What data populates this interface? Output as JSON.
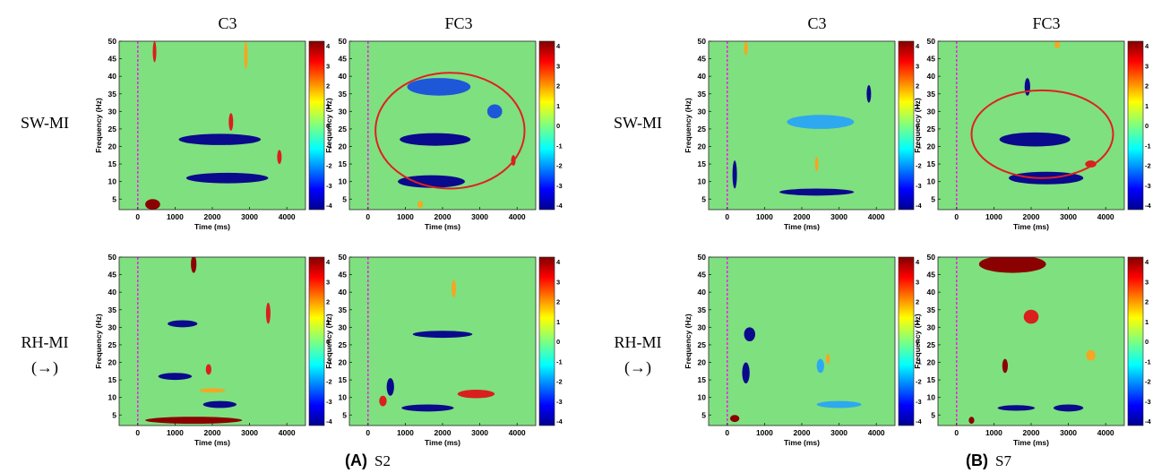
{
  "figure": {
    "panels": [
      {
        "letter": "(A)",
        "subject": "S2"
      },
      {
        "letter": "(B)",
        "subject": "S7"
      }
    ],
    "channels": [
      "C3",
      "FC3"
    ],
    "conditions": [
      {
        "line1": "SW-MI",
        "line2": ""
      },
      {
        "line1": "RH-MI",
        "line2": "(→)"
      }
    ]
  },
  "colors": {
    "background_green": "#7fe07f",
    "strong_blue": "#0a0a8c",
    "mid_blue": "#1f57d9",
    "light_blue": "#2ea8ef",
    "orange": "#f5a623",
    "red": "#d9201c",
    "dark_red": "#8b0000",
    "onset_line": "#ff00ff",
    "highlight_ellipse": "#e02020"
  },
  "chart_data": {
    "type": "heatmap",
    "xlabel": "Time (ms)",
    "ylabel": "Frequency (Hz)",
    "xlim": [
      -500,
      4500
    ],
    "ylim": [
      2,
      50
    ],
    "xticks": [
      0,
      1000,
      2000,
      3000,
      4000
    ],
    "yticks": [
      5,
      10,
      15,
      20,
      25,
      30,
      35,
      40,
      45,
      50
    ],
    "colorbar": {
      "range": [
        -4,
        4
      ],
      "ticks": [
        4,
        3,
        2,
        1,
        0,
        -1,
        -2,
        -3,
        -4
      ]
    },
    "onset_ms": 0,
    "plots": [
      {
        "panel": "(A)",
        "subject": "S2",
        "condition": "SW-MI",
        "channel": "C3",
        "blobs": [
          {
            "t": 2200,
            "f": 22,
            "dt": 2200,
            "df": 1.6,
            "v": -4
          },
          {
            "t": 2400,
            "f": 11,
            "dt": 2200,
            "df": 1.5,
            "v": -4
          },
          {
            "t": 400,
            "f": 3.5,
            "dt": 400,
            "df": 1.5,
            "v": 4
          },
          {
            "t": 2500,
            "f": 27,
            "dt": 120,
            "df": 2.5,
            "v": 3
          },
          {
            "t": 3800,
            "f": 17,
            "dt": 120,
            "df": 2,
            "v": 3
          },
          {
            "t": 450,
            "f": 47,
            "dt": 60,
            "df": 3,
            "v": 3
          },
          {
            "t": 2900,
            "f": 46,
            "dt": 60,
            "df": 4,
            "v": 2
          }
        ]
      },
      {
        "panel": "(A)",
        "subject": "S2",
        "condition": "SW-MI",
        "channel": "FC3",
        "blobs": [
          {
            "t": 1800,
            "f": 22,
            "dt": 1900,
            "df": 1.8,
            "v": -3
          },
          {
            "t": 1700,
            "f": 10,
            "dt": 1800,
            "df": 1.8,
            "v": -3
          },
          {
            "t": 1900,
            "f": 37,
            "dt": 1700,
            "df": 2.5,
            "v": -2
          },
          {
            "t": 3400,
            "f": 30,
            "dt": 400,
            "df": 2,
            "v": -2
          },
          {
            "t": 3900,
            "f": 16,
            "dt": 120,
            "df": 1.5,
            "v": 3
          },
          {
            "t": 1400,
            "f": 3.5,
            "dt": 150,
            "df": 1,
            "v": 2
          }
        ],
        "ellipse": {
          "t": 2200,
          "f": 24.5,
          "rt": 2000,
          "rf": 16.5
        }
      },
      {
        "panel": "(B)",
        "subject": "S7",
        "condition": "SW-MI",
        "channel": "C3",
        "blobs": [
          {
            "t": 2400,
            "f": 7,
            "dt": 2000,
            "df": 1,
            "v": -4
          },
          {
            "t": 200,
            "f": 12,
            "dt": 120,
            "df": 4,
            "v": -3
          },
          {
            "t": 2500,
            "f": 27,
            "dt": 1800,
            "df": 2,
            "v": -1
          },
          {
            "t": 3800,
            "f": 35,
            "dt": 120,
            "df": 2.5,
            "v": -3
          },
          {
            "t": 2400,
            "f": 15,
            "dt": 60,
            "df": 2,
            "v": 2
          },
          {
            "t": 500,
            "f": 48,
            "dt": 100,
            "df": 2,
            "v": 2
          }
        ]
      },
      {
        "panel": "(B)",
        "subject": "S7",
        "condition": "SW-MI",
        "channel": "FC3",
        "blobs": [
          {
            "t": 2100,
            "f": 22,
            "dt": 1900,
            "df": 2,
            "v": -3
          },
          {
            "t": 2400,
            "f": 11,
            "dt": 2000,
            "df": 1.8,
            "v": -4
          },
          {
            "t": 1900,
            "f": 37,
            "dt": 150,
            "df": 2.5,
            "v": -3
          },
          {
            "t": 3600,
            "f": 15,
            "dt": 300,
            "df": 1,
            "v": 3
          },
          {
            "t": 2700,
            "f": 49,
            "dt": 150,
            "df": 1,
            "v": 2
          }
        ],
        "ellipse": {
          "t": 2300,
          "f": 23.5,
          "rt": 1900,
          "rf": 12.5
        }
      },
      {
        "panel": "(A)",
        "subject": "S2",
        "condition": "RH-MI",
        "channel": "C3",
        "blobs": [
          {
            "t": 1500,
            "f": 3.5,
            "dt": 2600,
            "df": 1,
            "v": 4
          },
          {
            "t": 1500,
            "f": 48,
            "dt": 150,
            "df": 2.5,
            "v": 4
          },
          {
            "t": 3500,
            "f": 34,
            "dt": 120,
            "df": 3,
            "v": 3
          },
          {
            "t": 1900,
            "f": 18,
            "dt": 150,
            "df": 1.5,
            "v": 3
          },
          {
            "t": 1200,
            "f": 31,
            "dt": 800,
            "df": 1,
            "v": -3
          },
          {
            "t": 1000,
            "f": 16,
            "dt": 900,
            "df": 1,
            "v": -3
          },
          {
            "t": 2200,
            "f": 8,
            "dt": 900,
            "df": 1,
            "v": -3
          },
          {
            "t": 2000,
            "f": 12,
            "dt": 700,
            "df": 0.6,
            "v": 2
          }
        ]
      },
      {
        "panel": "(A)",
        "subject": "S2",
        "condition": "RH-MI",
        "channel": "FC3",
        "blobs": [
          {
            "t": 2000,
            "f": 28,
            "dt": 1600,
            "df": 1,
            "v": -4
          },
          {
            "t": 1600,
            "f": 7,
            "dt": 1400,
            "df": 1,
            "v": -3
          },
          {
            "t": 600,
            "f": 13,
            "dt": 200,
            "df": 2.5,
            "v": -4
          },
          {
            "t": 2900,
            "f": 11,
            "dt": 1000,
            "df": 1.2,
            "v": 3
          },
          {
            "t": 400,
            "f": 9,
            "dt": 200,
            "df": 1.5,
            "v": 3
          },
          {
            "t": 2300,
            "f": 41,
            "dt": 120,
            "df": 2.5,
            "v": 2
          }
        ]
      },
      {
        "panel": "(B)",
        "subject": "S7",
        "condition": "RH-MI",
        "channel": "C3",
        "blobs": [
          {
            "t": 200,
            "f": 4,
            "dt": 250,
            "df": 1,
            "v": 4
          },
          {
            "t": 600,
            "f": 28,
            "dt": 300,
            "df": 2,
            "v": -3
          },
          {
            "t": 500,
            "f": 17,
            "dt": 200,
            "df": 3,
            "v": -3
          },
          {
            "t": 2500,
            "f": 19,
            "dt": 200,
            "df": 2,
            "v": -1
          },
          {
            "t": 2700,
            "f": 21,
            "dt": 60,
            "df": 1.5,
            "v": 2
          },
          {
            "t": 3000,
            "f": 8,
            "dt": 1200,
            "df": 1,
            "v": -1
          }
        ]
      },
      {
        "panel": "(B)",
        "subject": "S7",
        "condition": "RH-MI",
        "channel": "FC3",
        "blobs": [
          {
            "t": 1500,
            "f": 48,
            "dt": 1800,
            "df": 2.5,
            "v": 4
          },
          {
            "t": 1300,
            "f": 19,
            "dt": 150,
            "df": 2,
            "v": 4
          },
          {
            "t": 1600,
            "f": 7,
            "dt": 1000,
            "df": 0.8,
            "v": -4
          },
          {
            "t": 3000,
            "f": 7,
            "dt": 800,
            "df": 1,
            "v": -4
          },
          {
            "t": 2000,
            "f": 33,
            "dt": 400,
            "df": 2,
            "v": 3
          },
          {
            "t": 3600,
            "f": 22,
            "dt": 250,
            "df": 1.5,
            "v": 2
          },
          {
            "t": 400,
            "f": 3.5,
            "dt": 150,
            "df": 1,
            "v": 4
          }
        ]
      }
    ]
  }
}
